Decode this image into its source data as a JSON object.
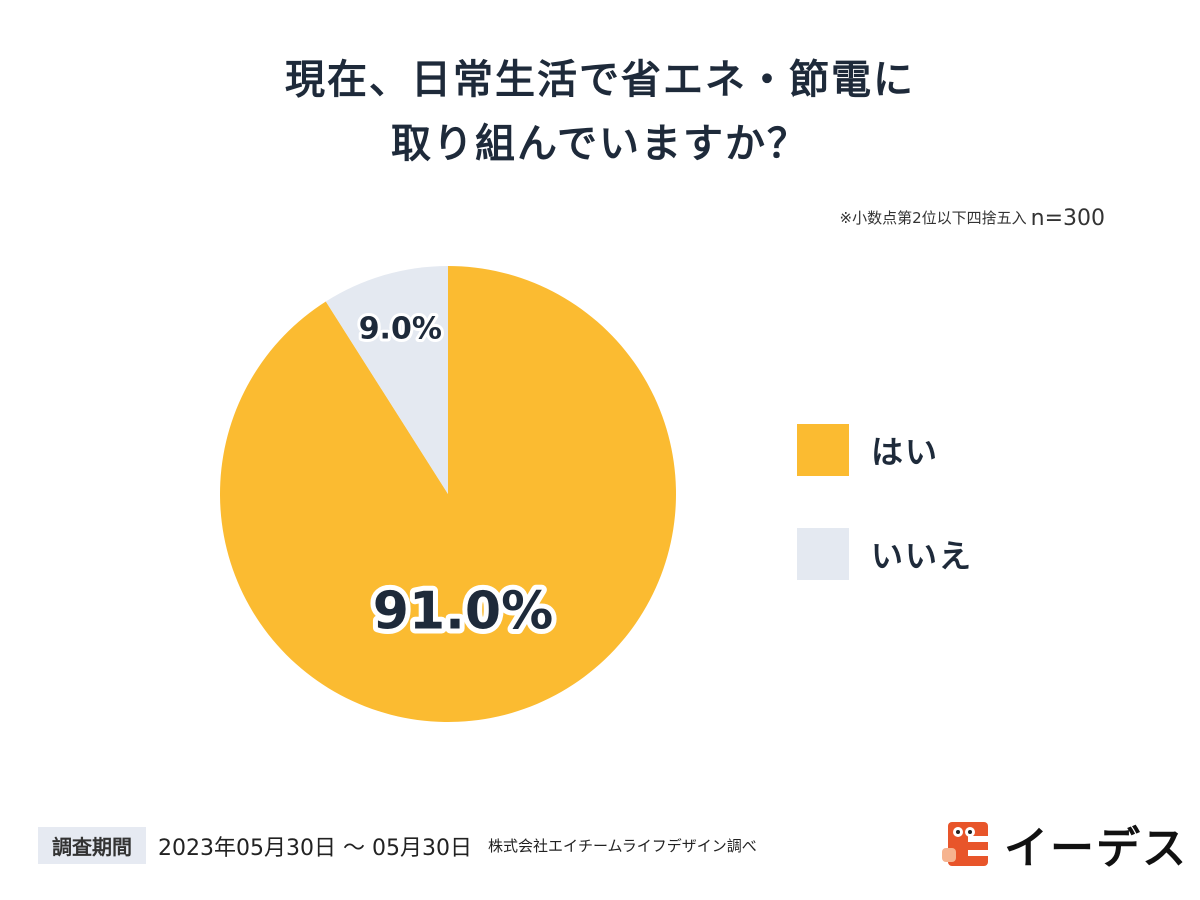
{
  "title": {
    "line1": "現在、日常生活で省エネ・節電に",
    "line2": "取り組んでいますか？"
  },
  "note": {
    "text": "※小数点第2位以下四捨五入",
    "sample": "n=300"
  },
  "chart_data": {
    "type": "pie",
    "categories": [
      "はい",
      "いいえ"
    ],
    "values": [
      91.0,
      9.0
    ],
    "value_labels": [
      "91.0%",
      "9.0%"
    ],
    "colors": [
      "#fbbb31",
      "#e4e9f1"
    ],
    "start": "top, clockwise",
    "legend_position": "right"
  },
  "footer": {
    "period_label": "調査期間",
    "dates": "2023年05月30日 〜 05月30日",
    "source": "株式会社エイチームライフデザイン調べ"
  },
  "logo": {
    "text": "イーデス",
    "icon": "edes-logo-icon",
    "color": "#e8552a"
  }
}
